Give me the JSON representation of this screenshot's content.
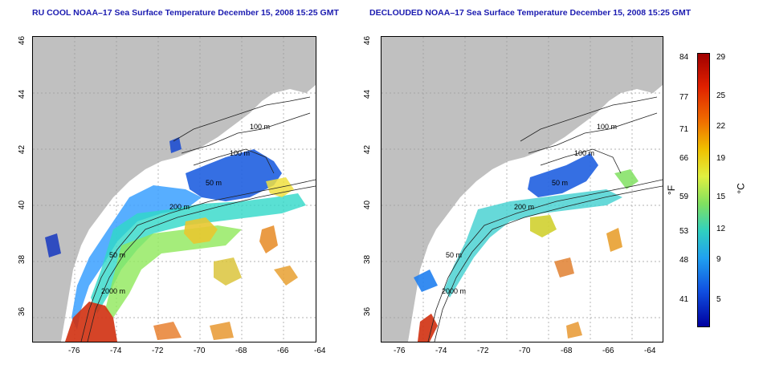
{
  "panels": [
    {
      "title": "RU COOL NOAA–17 Sea Surface Temperature December 15, 2008 15:25 GMT"
    },
    {
      "title": "DECLOUDED NOAA–17 Sea Surface Temperature December 15, 2008 15:25 GMT"
    }
  ],
  "axes": {
    "x_ticks": [
      "-76",
      "-74",
      "-72",
      "-70",
      "-68",
      "-66",
      "-64"
    ],
    "y_ticks": [
      "36",
      "38",
      "40",
      "42",
      "44",
      "46"
    ]
  },
  "contours": {
    "labels_left": [
      "100 m",
      "100 m",
      "50 m",
      "200 m",
      "50 m",
      "2000 m"
    ],
    "labels_right": [
      "100 m",
      "100 m",
      "50 m",
      "200 m",
      "50 m",
      "2000 m"
    ]
  },
  "colorbar": {
    "f_labels": [
      "84",
      "77",
      "71",
      "66",
      "59",
      "53",
      "48",
      "41"
    ],
    "c_labels": [
      "29",
      "25",
      "22",
      "19",
      "15",
      "12",
      "9",
      "5"
    ],
    "f_unit": "°F",
    "c_unit": "°C"
  },
  "colors": {
    "land": "#c0c0c0",
    "title": "#1b1bb0",
    "grid": "#999999"
  }
}
